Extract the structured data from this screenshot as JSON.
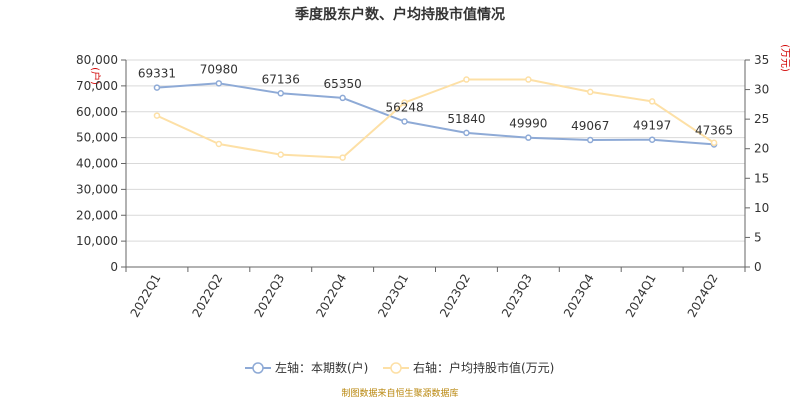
{
  "chart_data": {
    "type": "line",
    "title": "季度股东户数、户均持股市值情况",
    "categories": [
      "2022Q1",
      "2022Q2",
      "2022Q3",
      "2022Q4",
      "2023Q1",
      "2023Q2",
      "2023Q3",
      "2023Q4",
      "2024Q1",
      "2024Q2"
    ],
    "left_axis": {
      "unit_label": "(户)",
      "ylim": [
        0,
        80000
      ],
      "ticks": [
        "0",
        "10,000",
        "20,000",
        "30,000",
        "40,000",
        "50,000",
        "60,000",
        "70,000",
        "80,000"
      ]
    },
    "right_axis": {
      "unit_label": "(万元)",
      "ylim": [
        0,
        35
      ],
      "ticks": [
        "0",
        "5",
        "10",
        "15",
        "20",
        "25",
        "30",
        "35"
      ]
    },
    "series": [
      {
        "name": "左轴：本期数(户)",
        "axis": "left",
        "color": "#8eaad6",
        "values": [
          69331,
          70980,
          67136,
          65350,
          56248,
          51840,
          49990,
          49067,
          49197,
          47365
        ],
        "labels": [
          "69331",
          "70980",
          "67136",
          "65350",
          "56248",
          "51840",
          "49990",
          "49067",
          "49197",
          "47365"
        ]
      },
      {
        "name": "右轴：户均持股市值(万元)",
        "axis": "right",
        "color": "#fde0a6",
        "values": [
          25.6,
          20.8,
          19.0,
          18.5,
          27.8,
          31.7,
          31.7,
          29.6,
          28.0,
          21.0
        ]
      }
    ],
    "grid": true,
    "legend": "bottom-center"
  },
  "footer": {
    "source": "制图数据来自恒生聚源数据库"
  },
  "colors": {
    "text": "#333333",
    "axis": "#666666",
    "grid": "#d9d9d9",
    "unit_red": "#d00000",
    "footer": "#b8860b"
  }
}
